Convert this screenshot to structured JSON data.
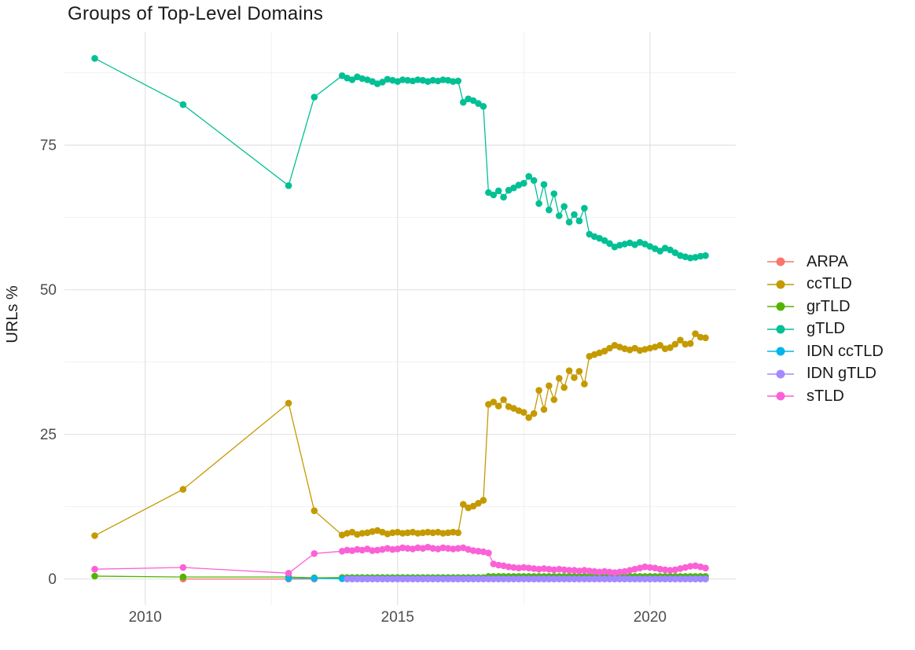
{
  "chart_data": {
    "type": "line",
    "title": "Groups of Top-Level Domains",
    "xlabel": "",
    "ylabel": "URLs %",
    "grid": true,
    "legend_position": "right",
    "x_axis": {
      "ticks": [
        2010,
        2015,
        2020
      ],
      "minor_ticks": [
        2012.5,
        2017.5
      ],
      "range": [
        2008.4,
        2021.7
      ]
    },
    "y_axis": {
      "ticks": [
        0,
        25,
        50,
        75
      ],
      "minor_ticks": [
        12.5,
        37.5,
        62.5,
        87.5
      ],
      "range": [
        -4.5,
        94.6
      ]
    },
    "series": [
      {
        "name": "ARPA",
        "color": "#F8766D",
        "points": [
          [
            2010.75,
            0.0
          ],
          [
            2012.84,
            0.0
          ],
          [
            2013.35,
            0.0
          ]
        ]
      },
      {
        "name": "ccTLD",
        "color": "#C49A00",
        "points": [
          [
            2009.0,
            7.5
          ],
          [
            2010.75,
            15.5
          ],
          [
            2012.84,
            30.4
          ],
          [
            2013.35,
            11.8
          ]
        ],
        "dense": {
          "start": 2013.9,
          "step": 0.1,
          "values": [
            7.6,
            7.9,
            8.1,
            7.7,
            7.9,
            8,
            8.2,
            8.4,
            8.1,
            7.8,
            8,
            8.1,
            7.9,
            8,
            8.1,
            7.9,
            8,
            8.1,
            8,
            8.1,
            7.9,
            8,
            8.1,
            8,
            12.9,
            12.3,
            12.6,
            13.1,
            13.6,
            30.2,
            30.6,
            29.9,
            31,
            29.8,
            29.5,
            29.1,
            28.8,
            27.9,
            28.6,
            32.6,
            29.3,
            33.4,
            31,
            34.7,
            33.1,
            36,
            34.8,
            35.9,
            33.7,
            38.5,
            38.8,
            39.1,
            39.4,
            39.9,
            40.4,
            40.1,
            39.8,
            39.6,
            39.9,
            39.5,
            39.7,
            39.9,
            40.1,
            40.4,
            39.8,
            40,
            40.6,
            41.3,
            40.6,
            40.7,
            42.4,
            41.8,
            41.7
          ]
        }
      },
      {
        "name": "grTLD",
        "color": "#53B400",
        "points": [
          [
            2009.0,
            0.5
          ],
          [
            2010.75,
            0.35
          ],
          [
            2012.84,
            0.35
          ],
          [
            2013.35,
            0.2
          ]
        ],
        "segments": [
          {
            "start": 2013.9,
            "step": 0.1,
            "count": 29,
            "value": 0.25
          },
          {
            "start": 2016.8,
            "step": 0.1,
            "count": 44,
            "value": 0.45
          }
        ]
      },
      {
        "name": "gTLD",
        "color": "#00C094",
        "points": [
          [
            2009.0,
            90.0
          ],
          [
            2010.75,
            82.0
          ],
          [
            2012.84,
            68.0
          ],
          [
            2013.35,
            83.3
          ]
        ],
        "dense": {
          "start": 2013.9,
          "step": 0.1,
          "values": [
            87,
            86.6,
            86.3,
            86.8,
            86.5,
            86.3,
            86,
            85.6,
            85.9,
            86.4,
            86.2,
            86,
            86.3,
            86.2,
            86.1,
            86.3,
            86.2,
            86,
            86.2,
            86.1,
            86.3,
            86.2,
            86,
            86.1,
            82.4,
            83,
            82.7,
            82.2,
            81.7,
            66.8,
            66.4,
            67.1,
            66,
            67.2,
            67.6,
            68.1,
            68.4,
            69.6,
            68.9,
            64.9,
            68.2,
            63.8,
            66.6,
            62.8,
            64.4,
            61.7,
            63,
            61.9,
            64.1,
            59.6,
            59.2,
            58.9,
            58.5,
            58,
            57.4,
            57.7,
            57.9,
            58.1,
            57.8,
            58.2,
            57.9,
            57.5,
            57.1,
            56.7,
            57.2,
            56.9,
            56.4,
            55.9,
            55.7,
            55.5,
            55.6,
            55.8,
            55.9
          ]
        }
      },
      {
        "name": "IDN ccTLD",
        "color": "#00B6EB",
        "points": [
          [
            2012.84,
            0.1
          ],
          [
            2013.35,
            0.1
          ]
        ],
        "segments": [
          {
            "start": 2013.9,
            "step": 0.1,
            "count": 73,
            "value": 0.05
          }
        ]
      },
      {
        "name": "IDN gTLD",
        "color": "#A58AFF",
        "points": [],
        "segments": [
          {
            "start": 2014.0,
            "step": 0.1,
            "count": 72,
            "value": 0.0
          }
        ]
      },
      {
        "name": "sTLD",
        "color": "#FB61D7",
        "points": [
          [
            2009.0,
            1.7
          ],
          [
            2010.75,
            2.0
          ],
          [
            2012.84,
            1.0
          ],
          [
            2013.35,
            4.4
          ]
        ],
        "dense": {
          "start": 2013.9,
          "step": 0.1,
          "values": [
            4.8,
            5,
            4.9,
            5.1,
            5,
            5.2,
            4.9,
            5,
            5.1,
            5.3,
            5.1,
            5.2,
            5.4,
            5.3,
            5.2,
            5.4,
            5.3,
            5.5,
            5.3,
            5.2,
            5.4,
            5.3,
            5.2,
            5.3,
            5.4,
            5.1,
            4.9,
            4.8,
            4.7,
            4.5,
            2.6,
            2.4,
            2.3,
            2.1,
            2,
            1.9,
            2,
            1.9,
            1.8,
            1.7,
            1.8,
            1.7,
            1.6,
            1.7,
            1.6,
            1.5,
            1.5,
            1.4,
            1.5,
            1.4,
            1.3,
            1.2,
            1.3,
            1.2,
            1.1,
            1.2,
            1.3,
            1.5,
            1.7,
            1.9,
            2.1,
            2,
            1.9,
            1.7,
            1.6,
            1.5,
            1.6,
            1.8,
            2,
            2.2,
            2.3,
            2.1,
            1.9
          ]
        }
      }
    ]
  }
}
